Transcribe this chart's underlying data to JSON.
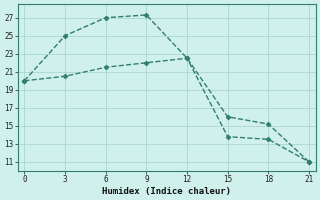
{
  "xlabel": "Humidex (Indice chaleur)",
  "line1_x": [
    0,
    3,
    6,
    9,
    12,
    15,
    18,
    21
  ],
  "line1_y": [
    20.0,
    25.0,
    27.0,
    27.3,
    22.5,
    16.0,
    15.2,
    11.0
  ],
  "line2_x": [
    0,
    3,
    6,
    9,
    12,
    15,
    18,
    21
  ],
  "line2_y": [
    20.0,
    20.5,
    21.5,
    22.0,
    22.5,
    13.8,
    13.5,
    11.0
  ],
  "line_color": "#317d6e",
  "bg_color": "#cff0eb",
  "grid_color": "#aad8d0",
  "xlim": [
    -0.5,
    21.5
  ],
  "ylim": [
    10,
    28.5
  ],
  "xticks": [
    0,
    3,
    6,
    9,
    12,
    15,
    18,
    21
  ],
  "yticks": [
    11,
    13,
    15,
    17,
    19,
    21,
    23,
    25,
    27
  ],
  "marker": "D",
  "marker_size": 2.5,
  "line_width": 1.0
}
